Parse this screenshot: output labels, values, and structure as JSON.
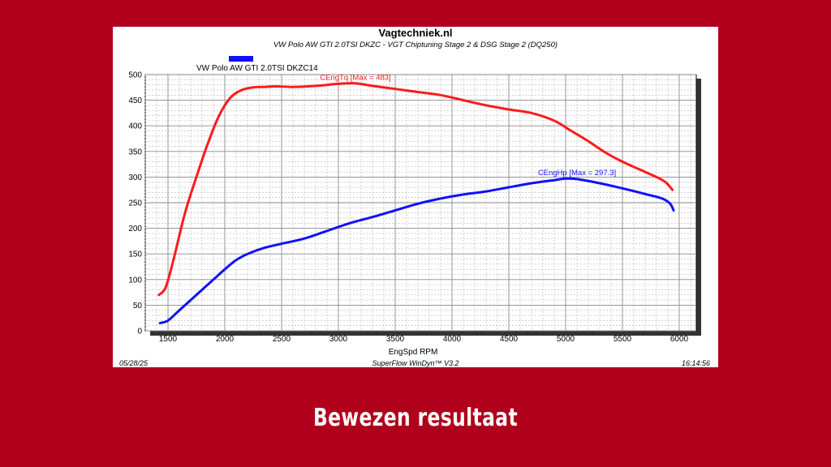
{
  "slide_title": "Bewezen resultaat",
  "header": {
    "title": "Vagtechniek.nl",
    "subtitle": "VW Polo AW GTI 2.0TSI DKZC - VGT Chiptuning Stage 2 & DSG Stage 2 (DQ250)"
  },
  "legend": {
    "label": "VW Polo AW GTI 2.0TSI DKZC14",
    "color": "#1010ff"
  },
  "footer": {
    "date": "05/28/25",
    "software": "SuperFlow WinDyn™ V3.2",
    "time": "16:14:56"
  },
  "chart_data": {
    "type": "line",
    "xlabel": "EngSpd RPM",
    "ylabel": "",
    "xlim": [
      1300,
      6150
    ],
    "ylim": [
      0,
      500
    ],
    "xticks": [
      1500,
      2000,
      2500,
      3000,
      3500,
      4000,
      4500,
      5000,
      5500,
      6000
    ],
    "yticks": [
      0,
      50,
      100,
      150,
      200,
      250,
      300,
      350,
      400,
      450,
      500
    ],
    "grid": true,
    "series": [
      {
        "name": "CEngTq",
        "annotation": "CEngTq [Max = 483]",
        "color": "#ff1a1a",
        "x": [
          1420,
          1480,
          1550,
          1650,
          1750,
          1850,
          1950,
          2050,
          2150,
          2250,
          2350,
          2450,
          2600,
          2800,
          3000,
          3150,
          3300,
          3500,
          3700,
          3900,
          4100,
          4300,
          4500,
          4700,
          4900,
          5050,
          5200,
          5350,
          5500,
          5650,
          5800,
          5880,
          5940
        ],
        "y": [
          70,
          85,
          140,
          230,
          300,
          365,
          420,
          455,
          470,
          475,
          476,
          477,
          476,
          478,
          482,
          483,
          478,
          472,
          466,
          460,
          450,
          440,
          432,
          425,
          410,
          390,
          370,
          348,
          330,
          315,
          300,
          290,
          275
        ]
      },
      {
        "name": "CEngHp",
        "annotation": "CEngHp [Max = 297.3]",
        "color": "#1010ff",
        "x": [
          1430,
          1500,
          1600,
          1700,
          1800,
          1900,
          2000,
          2100,
          2200,
          2350,
          2500,
          2700,
          2900,
          3100,
          3300,
          3500,
          3700,
          3900,
          4100,
          4300,
          4500,
          4700,
          4900,
          5000,
          5100,
          5300,
          5500,
          5700,
          5850,
          5920,
          5950
        ],
        "y": [
          15,
          20,
          40,
          60,
          80,
          100,
          120,
          138,
          150,
          162,
          170,
          180,
          195,
          210,
          222,
          235,
          248,
          258,
          266,
          272,
          280,
          288,
          294,
          297,
          296,
          288,
          278,
          267,
          258,
          248,
          235
        ]
      }
    ]
  }
}
